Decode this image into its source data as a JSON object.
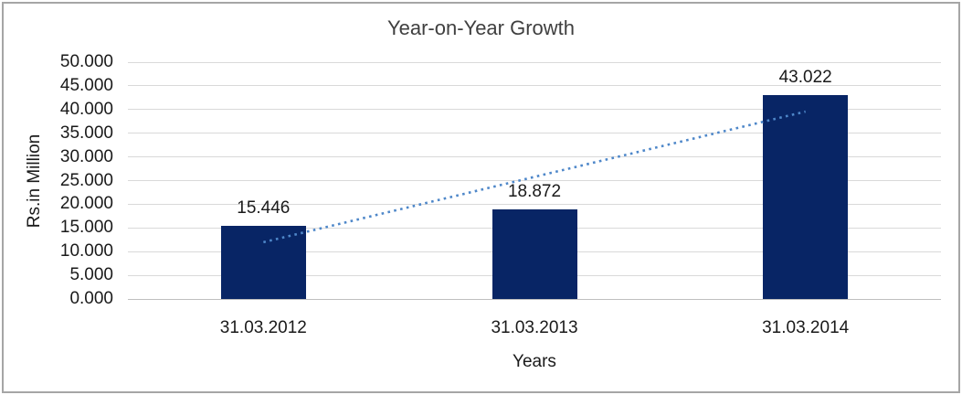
{
  "chart_data": {
    "type": "bar",
    "title": "Year-on-Year Growth",
    "categories": [
      "31.03.2012",
      "31.03.2013",
      "31.03.2014"
    ],
    "values": [
      15.446,
      18.872,
      43.022
    ],
    "value_labels": [
      "15.446",
      "18.872",
      "43.022"
    ],
    "xlabel": "Years",
    "ylabel": "Rs.in Million",
    "ylim": [
      0,
      50
    ],
    "ytick_step": 5,
    "ytick_labels": [
      "50.000",
      "45.000",
      "40.000",
      "35.000",
      "30.000",
      "25.000",
      "20.000",
      "15.000",
      "10.000",
      "5.000",
      "0.000"
    ],
    "grid": "horizontal",
    "legend": "none",
    "trendline": {
      "style": "dotted",
      "color": "#4e87c9",
      "start_value": 11.99,
      "end_value": 39.57
    },
    "colors": {
      "bar": "#082565",
      "gridline": "#d9d9d9",
      "axis_line": "#bfbfbf",
      "text": "#1a1a1a",
      "title_text": "#3f3f3f",
      "border": "#a6a6a6",
      "background": "#ffffff"
    }
  }
}
